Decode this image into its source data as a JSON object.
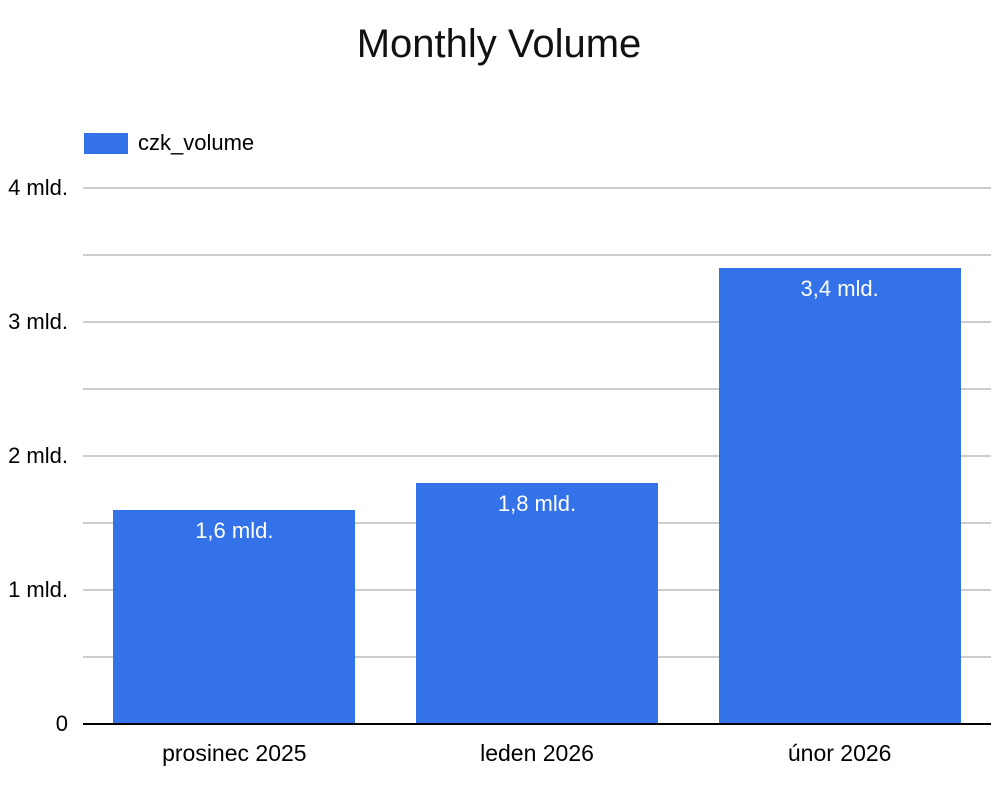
{
  "chart_data": {
    "type": "bar",
    "title": "Monthly Volume",
    "categories": [
      "prosinec 2025",
      "leden 2026",
      "únor 2026"
    ],
    "series": [
      {
        "name": "czk_volume",
        "values": [
          1.6,
          1.8,
          3.4
        ],
        "value_labels": [
          "1,6 mld.",
          "1,8 mld.",
          "3,4 mld."
        ]
      }
    ],
    "ylim": [
      0,
      4
    ],
    "gridline_step": 0.5,
    "ytick_values": [
      0,
      1,
      2,
      3,
      4
    ],
    "ytick_labels": [
      "0",
      "1 mld.",
      "2 mld.",
      "3 mld.",
      "4 mld."
    ],
    "xlabel": "",
    "ylabel": "",
    "grid": true,
    "legend_position": "top-left"
  },
  "colors": {
    "bar": "#3372e8",
    "gridline": "#cccccc",
    "baseline": "#000000",
    "title_text": "#111111",
    "axis_text": "#000000",
    "bar_label_text": "#ffffff"
  }
}
